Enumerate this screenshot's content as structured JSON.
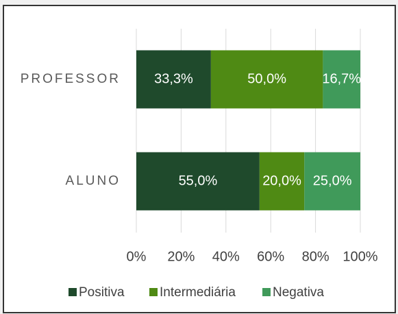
{
  "chart_data": {
    "type": "bar",
    "orientation": "horizontal",
    "stacked": true,
    "categories": [
      "PROFESSOR",
      "ALUNO"
    ],
    "series": [
      {
        "name": "Positiva",
        "color": "#1f4a2c",
        "values": [
          33.3,
          55.0
        ],
        "value_labels": [
          "33,3%",
          "55,0%"
        ]
      },
      {
        "name": "Intermediária",
        "color": "#4f8a14",
        "values": [
          50.0,
          20.0
        ],
        "value_labels": [
          "50,0%",
          "20,0%"
        ]
      },
      {
        "name": "Negativa",
        "color": "#409a5a",
        "values": [
          16.7,
          25.0
        ],
        "value_labels": [
          "16,7%",
          "25,0%"
        ]
      }
    ],
    "xlim": [
      0,
      100
    ],
    "xticks": [
      {
        "value": 0,
        "label": "0%"
      },
      {
        "value": 20,
        "label": "20%"
      },
      {
        "value": 40,
        "label": "40%"
      },
      {
        "value": 60,
        "label": "60%"
      },
      {
        "value": 80,
        "label": "80%"
      },
      {
        "value": 100,
        "label": "100%"
      }
    ],
    "grid": true,
    "legend": "bottom"
  }
}
